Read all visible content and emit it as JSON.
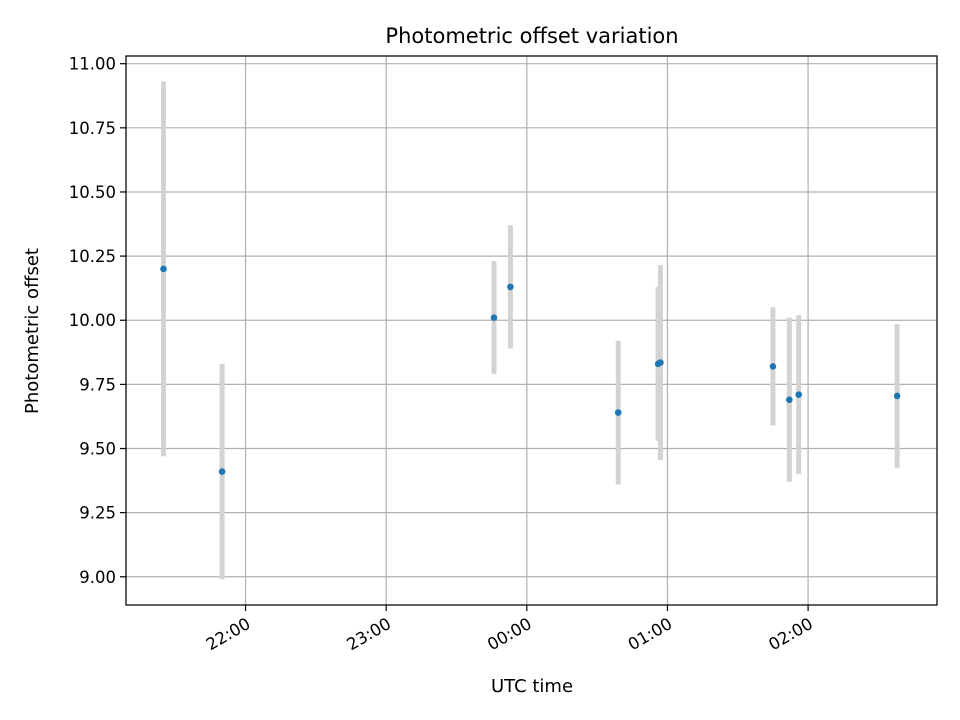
{
  "chart_data": {
    "type": "scatter",
    "title": "Photometric offset variation",
    "xlabel": "UTC time",
    "ylabel": "Photometric offset",
    "grid": true,
    "x_ticks": [
      "22:00",
      "23:00",
      "00:00",
      "01:00",
      "02:00"
    ],
    "y_ticks": [
      "9.00",
      "9.25",
      "9.50",
      "9.75",
      "10.00",
      "10.25",
      "10.50",
      "10.75",
      "11.00"
    ],
    "ylim": [
      8.89,
      11.03
    ],
    "xlim": [
      "21:09",
      "02:55"
    ],
    "colors": {
      "point": "#1f77b4",
      "errorbar": "#d3d3d3",
      "grid": "#b0b0b0"
    },
    "points": [
      {
        "x": "21:25",
        "y": 10.2,
        "err": 0.73
      },
      {
        "x": "21:50",
        "y": 9.41,
        "err": 0.42
      },
      {
        "x": "23:46",
        "y": 10.01,
        "err": 0.22
      },
      {
        "x": "23:53",
        "y": 10.13,
        "err": 0.24
      },
      {
        "x": "00:39",
        "y": 9.64,
        "err": 0.28
      },
      {
        "x": "00:56",
        "y": 9.83,
        "err": 0.3
      },
      {
        "x": "00:57",
        "y": 9.835,
        "err": 0.38
      },
      {
        "x": "01:45",
        "y": 9.82,
        "err": 0.23
      },
      {
        "x": "01:52",
        "y": 9.69,
        "err": 0.32
      },
      {
        "x": "01:56",
        "y": 9.71,
        "err": 0.31
      },
      {
        "x": "02:38",
        "y": 9.705,
        "err": 0.28
      }
    ]
  }
}
